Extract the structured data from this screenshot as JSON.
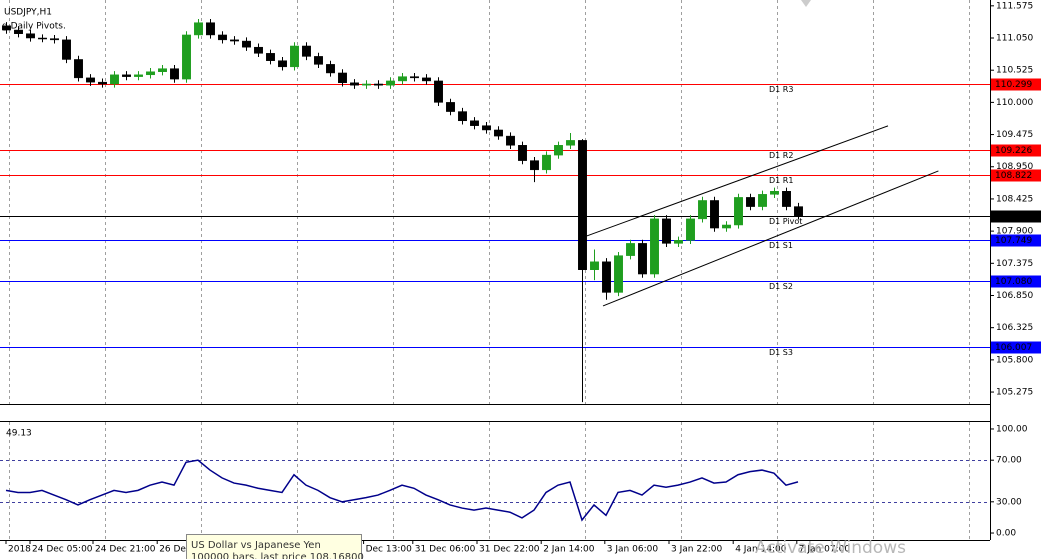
{
  "chart_data": [
    {
      "type": "candlestick",
      "title": "USDJPY,H1",
      "indicator": "g Daily Pivots.",
      "open": [
        111.25,
        111.18,
        111.12,
        111.05,
        111.04,
        111.02,
        110.7,
        110.4,
        110.33,
        110.3,
        110.45,
        110.42,
        110.45,
        110.5,
        110.55,
        110.38,
        111.1,
        111.3,
        111.1,
        111.02,
        111.0,
        110.9,
        110.8,
        110.68,
        110.58,
        110.92,
        110.75,
        110.62,
        110.48,
        110.32,
        110.28,
        110.3,
        110.28,
        110.35,
        110.42,
        110.4,
        110.35,
        110.0,
        109.85,
        109.7,
        109.62,
        109.55,
        109.45,
        109.3,
        109.05,
        108.9,
        109.14,
        109.3,
        109.38,
        107.27,
        107.4,
        106.9,
        107.5,
        107.7,
        107.2,
        108.1,
        107.7,
        107.75,
        108.1,
        108.4,
        107.95,
        108.0,
        108.45,
        108.3,
        108.5,
        108.55,
        108.3
      ],
      "high": [
        111.31,
        111.24,
        111.18,
        111.11,
        111.1,
        111.08,
        110.76,
        110.46,
        110.39,
        110.51,
        110.51,
        110.51,
        110.56,
        110.61,
        110.61,
        111.16,
        111.36,
        111.36,
        111.16,
        111.08,
        111.06,
        110.96,
        110.86,
        110.74,
        110.98,
        110.98,
        110.81,
        110.68,
        110.54,
        110.38,
        110.36,
        110.36,
        110.41,
        110.48,
        110.48,
        110.46,
        110.41,
        110.06,
        109.91,
        109.76,
        109.68,
        109.61,
        109.51,
        109.36,
        109.11,
        109.2,
        109.36,
        109.5,
        109.4,
        107.6,
        107.46,
        107.56,
        107.76,
        107.76,
        108.16,
        108.16,
        107.81,
        108.16,
        108.46,
        108.46,
        108.06,
        108.51,
        108.51,
        108.56,
        108.61,
        108.61,
        108.36
      ],
      "low": [
        111.12,
        111.06,
        110.99,
        110.98,
        110.96,
        110.64,
        110.34,
        110.27,
        110.24,
        110.24,
        110.36,
        110.36,
        110.39,
        110.44,
        110.32,
        110.32,
        111.04,
        111.04,
        110.96,
        110.94,
        110.84,
        110.74,
        110.62,
        110.52,
        110.52,
        110.69,
        110.56,
        110.42,
        110.26,
        110.22,
        110.22,
        110.22,
        110.22,
        110.29,
        110.34,
        110.29,
        109.94,
        109.79,
        109.64,
        109.56,
        109.49,
        109.39,
        109.24,
        108.99,
        108.7,
        108.84,
        109.08,
        109.24,
        105.11,
        107.1,
        106.78,
        106.84,
        107.44,
        107.14,
        107.14,
        107.64,
        107.64,
        107.69,
        108.04,
        107.89,
        107.89,
        107.94,
        108.24,
        108.24,
        108.44,
        108.24,
        108.09
      ],
      "close": [
        111.18,
        111.12,
        111.05,
        111.04,
        111.02,
        110.7,
        110.4,
        110.33,
        110.3,
        110.45,
        110.42,
        110.45,
        110.5,
        110.55,
        110.38,
        111.1,
        111.3,
        111.1,
        111.02,
        111.0,
        110.9,
        110.8,
        110.68,
        110.58,
        110.92,
        110.75,
        110.62,
        110.48,
        110.32,
        110.28,
        110.3,
        110.28,
        110.35,
        110.42,
        110.4,
        110.35,
        110.0,
        109.85,
        109.7,
        109.62,
        109.55,
        109.45,
        109.3,
        109.05,
        108.9,
        109.14,
        109.3,
        109.38,
        107.27,
        107.4,
        106.9,
        107.5,
        107.7,
        107.2,
        108.1,
        107.7,
        107.75,
        108.1,
        108.4,
        107.95,
        108.0,
        108.45,
        108.3,
        108.5,
        108.55,
        108.3,
        108.15
      ],
      "bull_color": "#1f9e1f",
      "bear_color": "#000000",
      "xlim": [
        -0.5,
        82
      ],
      "ylim": [
        105.08,
        111.67
      ],
      "yticks": [
        111.575,
        {
          "value": 111.05,
          "label": "111.050"
        },
        110.525,
        {
          "value": 110,
          "label": "110.000"
        },
        109.475,
        {
          "value": 108.95,
          "label": "108.950"
        },
        108.425,
        {
          "value": 107.9,
          "label": "107.900"
        },
        107.375,
        {
          "value": 106.85,
          "label": "106.850"
        },
        106.325,
        {
          "value": 105.8,
          "label": "105.800"
        },
        105.275
      ],
      "xticks": [
        {
          "value": 0,
          "label": "2018"
        },
        {
          "value": 2,
          "label": "24 Dec 05:00"
        },
        {
          "value": 7.25,
          "label": "24 Dec 21:00"
        },
        {
          "value": 12.6,
          "label": "26 Dec"
        },
        {
          "value": 29.8,
          "label": "Dec 13:00"
        },
        {
          "value": 33.9,
          "label": "31 Dec 06:00"
        },
        {
          "value": 39.25,
          "label": "31 Dec 22:00"
        },
        {
          "value": 44.6,
          "label": "2 Jan 14:00"
        },
        {
          "value": 49.9,
          "label": "3 Jan 06:00"
        },
        {
          "value": 55.25,
          "label": "3 Jan 22:00"
        },
        {
          "value": 60.6,
          "label": "4 Jan 14:00"
        },
        {
          "value": 65.9,
          "label": "7 Jan 07:00"
        }
      ],
      "grid": true,
      "levels": [
        {
          "name": "D1 R3",
          "value": 110.299,
          "color": "#ff0000",
          "price_tag": true
        },
        {
          "name": "D1 R2",
          "value": 109.226,
          "color": "#ff0000",
          "price_tag": true
        },
        {
          "name": "D1 R1",
          "value": 108.822,
          "color": "#ff0000",
          "price_tag": true
        },
        {
          "name": "D1 Pivot",
          "value": 108.14,
          "color": "#000000",
          "price_tag": false
        },
        {
          "name": "D1 S1",
          "value": 107.749,
          "color": "#0000ff",
          "price_tag": true
        },
        {
          "name": "D1 S2",
          "value": 107.08,
          "color": "#0000ff",
          "price_tag": true
        },
        {
          "name": "D1 S3",
          "value": 106.007,
          "color": "#0000ff",
          "price_tag": true
        }
      ],
      "level_labels": [
        {
          "value": 107.08,
          "label": "107.080"
        }
      ],
      "bid": {
        "value": 108.153,
        "color": "#000000"
      },
      "trendlines": [
        {
          "x": [
            48.4,
            73.5
          ],
          "y": [
            107.821,
            109.617
          ]
        },
        {
          "x": [
            49.75,
            77.7
          ],
          "y": [
            106.679,
            108.882
          ]
        }
      ]
    },
    {
      "type": "line",
      "color": "#00008b",
      "values": [
        41,
        39,
        39,
        41,
        36.5,
        32,
        27,
        32,
        36.5,
        41,
        39,
        41,
        46,
        49,
        46,
        68,
        70,
        60.5,
        53,
        48,
        46,
        43,
        41,
        39,
        56,
        46,
        41,
        34,
        30,
        32,
        34,
        36.5,
        41,
        46,
        43,
        36.5,
        32,
        27,
        24,
        22,
        24,
        22,
        20,
        14.5,
        22,
        39,
        46,
        49,
        12.5,
        27,
        17,
        39,
        41,
        36.5,
        46,
        44,
        46,
        49,
        53,
        48,
        49,
        56,
        59,
        60.5,
        57.5,
        46,
        49.13
      ],
      "ylim": [
        -6.7,
        106.7
      ],
      "yticks": [
        {
          "value": 100,
          "label": "100.00"
        },
        {
          "value": 70,
          "label": "70.00"
        },
        {
          "value": 30,
          "label": "30.00"
        },
        {
          "value": 0,
          "label": "0.00"
        }
      ],
      "levels": [
        70,
        30
      ]
    }
  ],
  "tooltip": [
    "US Dollar vs Japanese Yen",
    "100000 bars, last price 108.16800"
  ],
  "watermark": "Activate Windows"
}
